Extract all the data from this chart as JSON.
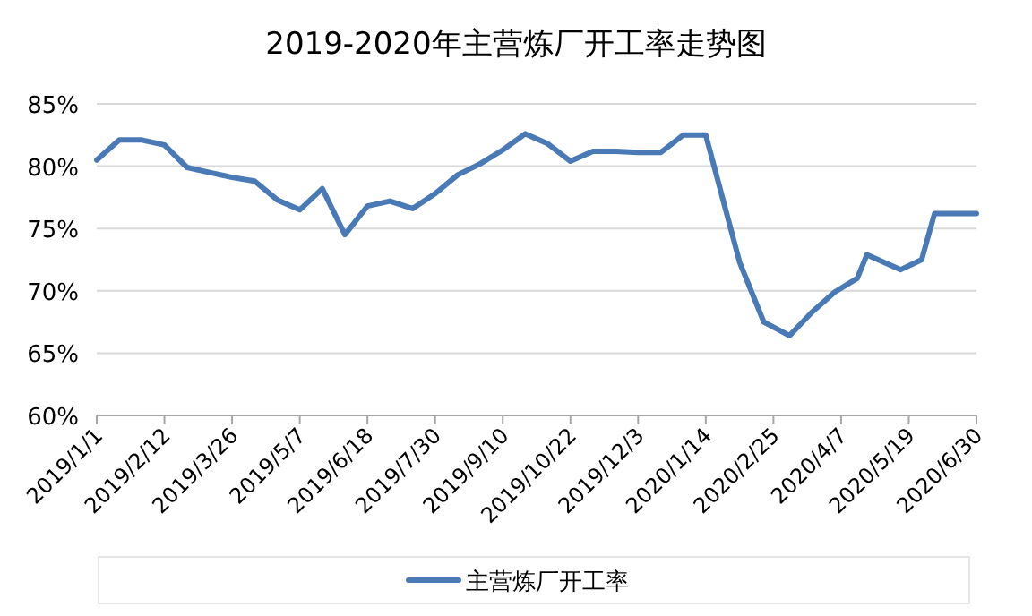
{
  "chart_data": {
    "type": "line",
    "title": "2019-2020年主营炼厂开工率走势图",
    "x": [
      "2019-01-01",
      "2019-01-15",
      "2019-01-29",
      "2019-02-12",
      "2019-02-26",
      "2019-03-12",
      "2019-03-26",
      "2019-04-09",
      "2019-04-23",
      "2019-05-07",
      "2019-05-21",
      "2019-06-04",
      "2019-06-18",
      "2019-07-02",
      "2019-07-16",
      "2019-07-30",
      "2019-08-13",
      "2019-08-27",
      "2019-09-10",
      "2019-09-24",
      "2019-10-08",
      "2019-10-22",
      "2019-11-05",
      "2019-11-19",
      "2019-12-03",
      "2019-12-17",
      "2019-12-31",
      "2020-01-14",
      "2020-02-04",
      "2020-02-19",
      "2020-03-06",
      "2020-03-20",
      "2020-04-03",
      "2020-04-17",
      "2020-04-23",
      "2020-05-14",
      "2020-05-27",
      "2020-06-04",
      "2020-06-30"
    ],
    "series": [
      {
        "name": "主营炼厂开工率",
        "color": "#4a7ab5",
        "values": [
          80.5,
          82.1,
          82.1,
          81.7,
          79.9,
          79.5,
          79.1,
          78.8,
          77.3,
          76.5,
          78.2,
          74.5,
          76.8,
          77.2,
          76.6,
          77.8,
          79.3,
          80.2,
          81.3,
          82.6,
          81.8,
          80.4,
          81.2,
          81.2,
          81.1,
          81.1,
          82.5,
          82.5,
          72.3,
          67.5,
          66.4,
          68.3,
          69.9,
          71.0,
          72.9,
          71.7,
          72.5,
          76.2,
          76.2
        ]
      }
    ],
    "xlim": [
      "2019-01-01",
      "2020-06-30"
    ],
    "xticks": [
      {
        "value": "2019-01-01",
        "label": "2019/1/1"
      },
      {
        "value": "2019-02-12",
        "label": "2019/2/12"
      },
      {
        "value": "2019-03-26",
        "label": "2019/3/26"
      },
      {
        "value": "2019-05-07",
        "label": "2019/5/7"
      },
      {
        "value": "2019-06-18",
        "label": "2019/6/18"
      },
      {
        "value": "2019-07-30",
        "label": "2019/7/30"
      },
      {
        "value": "2019-09-10",
        "label": "2019/9/10"
      },
      {
        "value": "2019-10-22",
        "label": "2019/10/22"
      },
      {
        "value": "2019-12-03",
        "label": "2019/12/3"
      },
      {
        "value": "2020-01-14",
        "label": "2020/1/14"
      },
      {
        "value": "2020-02-25",
        "label": "2020/2/25"
      },
      {
        "value": "2020-04-07",
        "label": "2020/4/7"
      },
      {
        "value": "2020-05-19",
        "label": "2020/5/19"
      },
      {
        "value": "2020-06-30",
        "label": "2020/6/30"
      }
    ],
    "ylim": [
      60,
      85
    ],
    "yticks": [
      {
        "value": 60,
        "label": "60%"
      },
      {
        "value": 65,
        "label": "65%"
      },
      {
        "value": 70,
        "label": "70%"
      },
      {
        "value": 75,
        "label": "75%"
      },
      {
        "value": 80,
        "label": "80%"
      },
      {
        "value": 85,
        "label": "85%"
      }
    ],
    "grid": "y",
    "legend": "bottom",
    "marker": "none",
    "line_style": "solid"
  }
}
